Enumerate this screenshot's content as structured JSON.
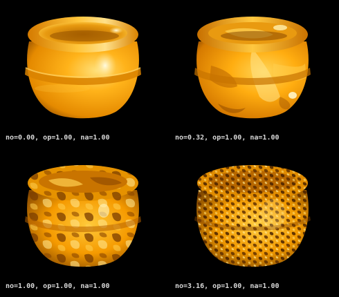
{
  "panels": [
    {
      "caption": "no=0.00, op=1.00, na=1.00",
      "noise": 0.0
    },
    {
      "caption": "no=0.32, op=1.00, na=1.00",
      "noise": 0.32
    },
    {
      "caption": "no=1.00, op=1.00, na=1.00",
      "noise": 1.0
    },
    {
      "caption": "no=3.16, op=1.00, na=1.00",
      "noise": 3.16
    }
  ],
  "colors": {
    "background": "#000000",
    "vase_base": "#f7a500",
    "vase_light": "#ffd24a",
    "vase_dark": "#7a3d00",
    "highlight": "#fff6c8",
    "caption_text": "#d8d8d8"
  }
}
